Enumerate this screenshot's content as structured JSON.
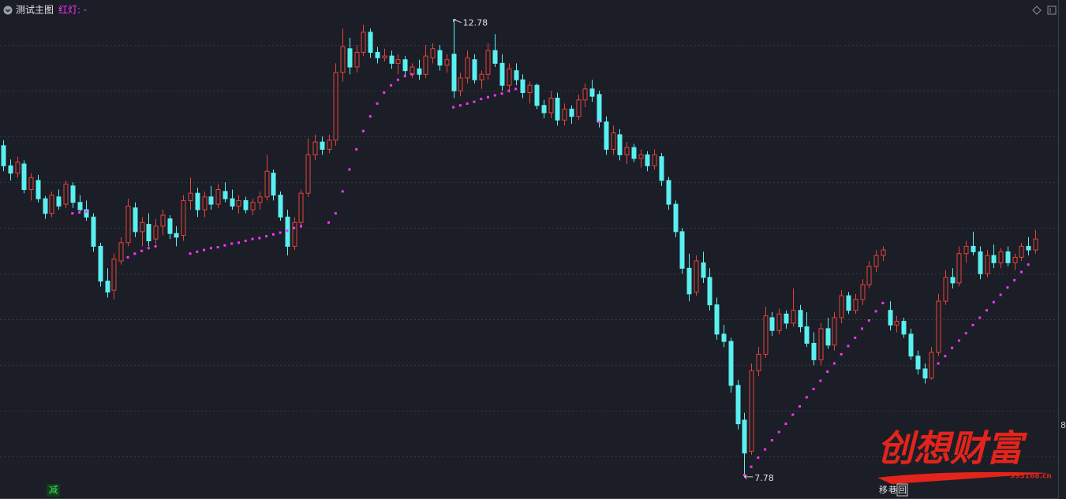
{
  "header": {
    "title": "测试主图"
  },
  "chart_data": {
    "type": "candlestick",
    "open": [
      11.4,
      11.18,
      11.1,
      11.2,
      10.92,
      11.02,
      10.82,
      10.66,
      10.84,
      10.76,
      10.96,
      10.78,
      10.7,
      10.62,
      10.3,
      9.92,
      9.82,
      10.14,
      10.34,
      10.72,
      10.46,
      10.54,
      10.38,
      10.52,
      10.6,
      10.44,
      10.42,
      10.8,
      10.88,
      10.7,
      10.84,
      10.76,
      10.9,
      10.82,
      10.74,
      10.8,
      10.7,
      10.78,
      10.84,
      11.1,
      10.86,
      10.62,
      10.3,
      10.56,
      10.88,
      11.3,
      11.44,
      11.36,
      11.46,
      12.2,
      12.46,
      12.26,
      12.42,
      12.64,
      12.42,
      12.36,
      12.38,
      12.3,
      12.34,
      12.18,
      12.24,
      12.18,
      12.36,
      12.44,
      12.28,
      12.4,
      12.0,
      12.14,
      12.34,
      12.12,
      12.18,
      12.44,
      12.3,
      12.06,
      12.22,
      12.12,
      11.98,
      12.06,
      11.84,
      11.76,
      11.92,
      11.68,
      11.8,
      11.72,
      11.9,
      12.02,
      11.96,
      11.66,
      11.36,
      11.52,
      11.3,
      11.38,
      11.26,
      11.3,
      11.18,
      11.28,
      11.02,
      10.76,
      10.46,
      10.06,
      9.8,
      10.12,
      9.96,
      9.66,
      9.34,
      9.26,
      8.78,
      8.4,
      8.06,
      8.94,
      9.12,
      9.52,
      9.38,
      9.56,
      9.46,
      9.6,
      9.42,
      9.24,
      9.06,
      9.4,
      9.22,
      9.52,
      9.76,
      9.6,
      9.72,
      9.88,
      10.08,
      10.2,
      9.6,
      9.44,
      9.48,
      9.34,
      9.1,
      8.96,
      8.86,
      9.14,
      9.7,
      9.96,
      9.9,
      10.22,
      10.3,
      10.24,
      10.0,
      10.2,
      10.12,
      10.24,
      10.12,
      10.18,
      10.3,
      10.26
    ],
    "high": [
      11.46,
      11.25,
      11.28,
      11.24,
      11.1,
      11.08,
      10.85,
      10.9,
      10.92,
      11.02,
      11.0,
      10.86,
      10.8,
      10.66,
      10.34,
      10.06,
      10.22,
      10.4,
      10.82,
      10.78,
      10.62,
      10.66,
      10.6,
      10.7,
      10.64,
      10.52,
      10.86,
      11.05,
      10.94,
      10.9,
      10.96,
      10.98,
      11.0,
      10.92,
      10.86,
      10.84,
      10.82,
      10.9,
      11.3,
      11.14,
      10.9,
      10.7,
      10.62,
      10.92,
      11.48,
      11.52,
      11.5,
      11.52,
      12.3,
      12.68,
      12.58,
      12.5,
      12.72,
      12.68,
      12.48,
      12.46,
      12.44,
      12.4,
      12.38,
      12.3,
      12.34,
      12.5,
      12.52,
      12.5,
      12.4,
      12.78,
      12.2,
      12.44,
      12.4,
      12.22,
      12.52,
      12.62,
      12.4,
      12.3,
      12.3,
      12.18,
      12.1,
      12.08,
      11.9,
      12.0,
      11.98,
      11.86,
      11.84,
      11.96,
      12.08,
      12.12,
      12.0,
      11.72,
      11.62,
      11.58,
      11.44,
      11.42,
      11.36,
      11.34,
      11.36,
      11.32,
      11.06,
      10.8,
      10.5,
      10.22,
      10.2,
      10.24,
      10.06,
      9.74,
      9.44,
      9.3,
      8.84,
      8.48,
      9.02,
      9.2,
      9.64,
      9.58,
      9.62,
      9.6,
      9.84,
      9.66,
      9.58,
      9.36,
      9.46,
      9.52,
      9.58,
      9.82,
      9.8,
      9.78,
      9.94,
      10.14,
      10.26,
      10.3,
      9.7,
      9.54,
      9.52,
      9.4,
      9.16,
      9.02,
      9.2,
      9.78,
      10.04,
      10.06,
      10.3,
      10.36,
      10.46,
      10.3,
      10.26,
      10.32,
      10.28,
      10.3,
      10.22,
      10.34,
      10.4,
      10.48
    ],
    "low": [
      11.12,
      11.02,
      11.05,
      10.88,
      10.8,
      10.78,
      10.6,
      10.62,
      10.7,
      10.72,
      10.72,
      10.66,
      10.58,
      10.24,
      9.86,
      9.74,
      9.72,
      10.1,
      10.3,
      10.4,
      10.3,
      10.3,
      10.32,
      10.42,
      10.38,
      10.3,
      10.36,
      10.7,
      10.62,
      10.62,
      10.7,
      10.72,
      10.78,
      10.7,
      10.66,
      10.66,
      10.64,
      10.7,
      10.8,
      10.8,
      10.58,
      10.2,
      10.26,
      10.5,
      10.84,
      11.24,
      11.3,
      11.32,
      11.4,
      12.1,
      12.18,
      12.2,
      12.38,
      12.36,
      12.3,
      12.32,
      12.24,
      12.18,
      12.16,
      12.14,
      12.12,
      12.14,
      12.3,
      12.22,
      12.2,
      11.92,
      11.94,
      12.08,
      12.08,
      12.02,
      12.12,
      12.26,
      12.0,
      11.98,
      12.06,
      11.92,
      11.86,
      11.8,
      11.7,
      11.7,
      11.62,
      11.62,
      11.64,
      11.68,
      11.82,
      11.88,
      11.6,
      11.3,
      11.3,
      11.24,
      11.2,
      11.22,
      11.16,
      11.12,
      11.14,
      10.96,
      10.7,
      10.4,
      10.0,
      9.7,
      9.76,
      9.9,
      9.6,
      9.28,
      9.2,
      8.7,
      8.3,
      7.78,
      8.02,
      8.88,
      9.08,
      9.32,
      9.34,
      9.4,
      9.42,
      9.36,
      9.2,
      9.0,
      9.0,
      9.18,
      9.16,
      9.46,
      9.56,
      9.56,
      9.66,
      9.84,
      10.02,
      10.14,
      9.38,
      9.36,
      9.3,
      9.06,
      8.9,
      8.8,
      8.84,
      9.1,
      9.66,
      9.84,
      9.86,
      10.12,
      10.2,
      9.94,
      9.96,
      10.06,
      10.06,
      10.08,
      10.04,
      10.14,
      10.2,
      10.22
    ],
    "close": [
      11.18,
      11.1,
      11.22,
      10.92,
      11.05,
      10.82,
      10.66,
      10.86,
      10.74,
      10.98,
      10.78,
      10.7,
      10.62,
      10.3,
      9.92,
      9.8,
      10.16,
      10.34,
      10.74,
      10.46,
      10.56,
      10.36,
      10.52,
      10.64,
      10.44,
      10.4,
      10.8,
      10.88,
      10.7,
      10.84,
      10.76,
      10.92,
      10.82,
      10.74,
      10.8,
      10.7,
      10.78,
      10.84,
      11.12,
      10.86,
      10.62,
      10.3,
      10.56,
      10.88,
      11.3,
      11.44,
      11.36,
      11.46,
      12.2,
      12.48,
      12.26,
      12.42,
      12.64,
      12.42,
      12.36,
      12.38,
      12.3,
      12.34,
      12.22,
      12.26,
      12.18,
      12.38,
      12.46,
      12.28,
      12.34,
      12.0,
      12.14,
      12.36,
      12.12,
      12.18,
      12.44,
      12.3,
      12.06,
      12.24,
      12.12,
      11.98,
      12.06,
      11.84,
      11.76,
      11.92,
      11.68,
      11.8,
      11.72,
      11.9,
      12.02,
      11.94,
      11.66,
      11.36,
      11.54,
      11.3,
      11.38,
      11.26,
      11.3,
      11.18,
      11.3,
      11.02,
      10.76,
      10.46,
      10.06,
      9.78,
      10.14,
      9.96,
      9.66,
      9.34,
      9.26,
      8.78,
      8.36,
      8.04,
      8.94,
      9.12,
      9.54,
      9.38,
      9.56,
      9.46,
      9.6,
      9.42,
      9.24,
      9.06,
      9.4,
      9.22,
      9.52,
      9.76,
      9.6,
      9.72,
      9.88,
      10.08,
      10.2,
      10.26,
      9.44,
      9.48,
      9.34,
      9.1,
      8.96,
      8.86,
      9.14,
      9.7,
      9.96,
      9.9,
      10.22,
      10.3,
      10.24,
      10.0,
      10.2,
      10.12,
      10.24,
      10.12,
      10.18,
      10.3,
      10.26,
      10.38
    ],
    "up_color": "#e8413c",
    "down_color": "#5af0f2",
    "series": [
      {
        "name": "红灯: -",
        "color": "#ff33ff",
        "values": [
          null,
          null,
          null,
          null,
          null,
          null,
          null,
          null,
          null,
          null,
          10.66,
          10.67,
          10.68,
          null,
          null,
          null,
          null,
          null,
          10.18,
          10.22,
          10.25,
          10.28,
          10.3,
          null,
          null,
          null,
          null,
          10.22,
          10.24,
          10.26,
          10.28,
          10.29,
          10.31,
          10.33,
          10.34,
          10.36,
          10.38,
          10.39,
          10.41,
          10.43,
          10.45,
          10.47,
          10.5,
          10.52,
          null,
          null,
          null,
          10.56,
          10.66,
          10.9,
          11.14,
          11.36,
          11.56,
          11.72,
          11.86,
          11.98,
          12.06,
          12.12,
          12.16,
          12.18,
          null,
          null,
          null,
          null,
          null,
          11.82,
          11.84,
          11.86,
          11.88,
          11.91,
          11.93,
          11.95,
          11.97,
          12.0,
          12.02,
          null,
          null,
          null,
          null,
          null,
          null,
          null,
          null,
          null,
          null,
          null,
          11.66,
          null,
          null,
          null,
          null,
          null,
          null,
          null,
          null,
          null,
          null,
          null,
          null,
          null,
          null,
          null,
          null,
          null,
          null,
          null,
          null,
          7.8,
          7.89,
          7.99,
          8.08,
          8.18,
          8.27,
          8.36,
          8.46,
          8.55,
          8.65,
          8.74,
          8.83,
          8.93,
          9.02,
          9.12,
          9.21,
          9.3,
          9.4,
          9.49,
          9.59,
          9.68,
          null,
          null,
          null,
          null,
          null,
          null,
          null,
          9.02,
          9.1,
          9.19,
          9.27,
          9.35,
          9.44,
          9.52,
          9.6,
          9.69,
          9.77,
          9.85,
          9.93,
          10.02,
          10.1,
          null
        ]
      }
    ],
    "ylim": [
      7.65,
      12.82
    ],
    "yticks": [
      8,
      8.5,
      9,
      9.5,
      10,
      10.5,
      11,
      11.5,
      12,
      12.5
    ],
    "grid": true
  },
  "footer": {
    "left_button": "减",
    "right_buttons": [
      "移",
      "巷",
      "回"
    ],
    "edge_label": "8"
  },
  "watermark": {
    "title": "创想财富",
    "url": "995168.cn"
  }
}
